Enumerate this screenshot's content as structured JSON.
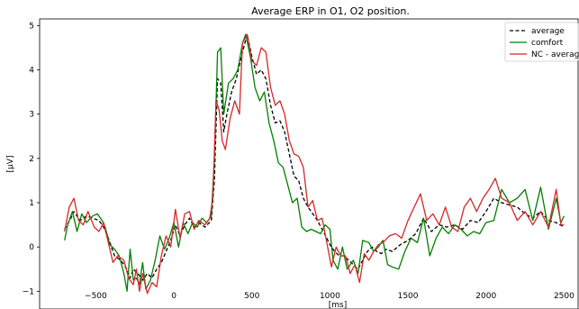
{
  "chart_data": {
    "type": "line",
    "title": "Average ERP in O1, O2 position.",
    "xlabel": "[ms]",
    "ylabel": "[µV]",
    "xlim": [
      -860,
      2590
    ],
    "ylim": [
      -1.4,
      5.15
    ],
    "xticks": [
      -500,
      0,
      500,
      1000,
      1500,
      2000,
      2500
    ],
    "xtick_labels": [
      "−500",
      "0",
      "500",
      "1000",
      "1500",
      "2000",
      "2500"
    ],
    "yticks": [
      -1,
      0,
      1,
      2,
      3,
      4,
      5
    ],
    "ytick_labels": [
      "−1",
      "0",
      "1",
      "2",
      "3",
      "4",
      "5"
    ],
    "grid": false,
    "legend": {
      "placement": "top-right"
    },
    "series": [
      {
        "name": "average",
        "color": "#000000",
        "style": "dashed",
        "points": [
          [
            -700,
            0.4
          ],
          [
            -660,
            0.65
          ],
          [
            -640,
            0.8
          ],
          [
            -600,
            0.6
          ],
          [
            -560,
            0.7
          ],
          [
            -520,
            0.65
          ],
          [
            -480,
            0.6
          ],
          [
            -450,
            0.45
          ],
          [
            -420,
            0.2
          ],
          [
            -380,
            -0.2
          ],
          [
            -340,
            -0.3
          ],
          [
            -300,
            -0.5
          ],
          [
            -280,
            -0.7
          ],
          [
            -260,
            -0.5
          ],
          [
            -230,
            -0.6
          ],
          [
            -200,
            -0.75
          ],
          [
            -170,
            -0.6
          ],
          [
            -140,
            -0.7
          ],
          [
            -110,
            -0.5
          ],
          [
            -80,
            -0.35
          ],
          [
            -50,
            -0.1
          ],
          [
            -20,
            0.15
          ],
          [
            10,
            0.5
          ],
          [
            40,
            0.25
          ],
          [
            70,
            0.5
          ],
          [
            100,
            0.65
          ],
          [
            130,
            0.45
          ],
          [
            160,
            0.55
          ],
          [
            200,
            0.45
          ],
          [
            240,
            0.6
          ],
          [
            260,
            1.5
          ],
          [
            280,
            3.8
          ],
          [
            300,
            3.7
          ],
          [
            320,
            2.6
          ],
          [
            340,
            3.0
          ],
          [
            370,
            3.5
          ],
          [
            400,
            3.8
          ],
          [
            440,
            4.4
          ],
          [
            470,
            4.8
          ],
          [
            500,
            4.3
          ],
          [
            530,
            3.9
          ],
          [
            560,
            4.0
          ],
          [
            590,
            3.8
          ],
          [
            620,
            3.2
          ],
          [
            650,
            2.8
          ],
          [
            680,
            2.85
          ],
          [
            710,
            2.6
          ],
          [
            740,
            2.1
          ],
          [
            770,
            1.6
          ],
          [
            800,
            1.5
          ],
          [
            830,
            1.1
          ],
          [
            860,
            0.9
          ],
          [
            890,
            0.75
          ],
          [
            920,
            0.6
          ],
          [
            950,
            0.4
          ],
          [
            980,
            0.2
          ],
          [
            1000,
            0.05
          ],
          [
            1030,
            -0.1
          ],
          [
            1060,
            -0.2
          ],
          [
            1090,
            -0.2
          ],
          [
            1120,
            -0.3
          ],
          [
            1150,
            -0.4
          ],
          [
            1180,
            -0.5
          ],
          [
            1210,
            -0.3
          ],
          [
            1240,
            -0.1
          ],
          [
            1270,
            0.0
          ],
          [
            1300,
            -0.1
          ],
          [
            1330,
            -0.15
          ],
          [
            1360,
            -0.05
          ],
          [
            1400,
            -0.1
          ],
          [
            1450,
            0.05
          ],
          [
            1500,
            0.15
          ],
          [
            1550,
            0.3
          ],
          [
            1600,
            0.65
          ],
          [
            1650,
            0.35
          ],
          [
            1700,
            0.5
          ],
          [
            1750,
            0.45
          ],
          [
            1800,
            0.5
          ],
          [
            1850,
            0.4
          ],
          [
            1900,
            0.6
          ],
          [
            1950,
            0.55
          ],
          [
            2000,
            0.8
          ],
          [
            2050,
            1.1
          ],
          [
            2100,
            1.0
          ],
          [
            2150,
            0.95
          ],
          [
            2200,
            0.9
          ],
          [
            2250,
            0.75
          ],
          [
            2300,
            0.65
          ],
          [
            2350,
            0.8
          ],
          [
            2400,
            0.6
          ],
          [
            2450,
            0.55
          ],
          [
            2500,
            0.45
          ]
        ]
      },
      {
        "name": "comfort",
        "color": "#008000",
        "style": "solid",
        "points": [
          [
            -700,
            0.15
          ],
          [
            -680,
            0.5
          ],
          [
            -650,
            0.8
          ],
          [
            -620,
            0.35
          ],
          [
            -590,
            0.75
          ],
          [
            -560,
            0.55
          ],
          [
            -520,
            0.7
          ],
          [
            -490,
            0.75
          ],
          [
            -460,
            0.6
          ],
          [
            -440,
            0.45
          ],
          [
            -410,
            0.05
          ],
          [
            -380,
            -0.05
          ],
          [
            -350,
            -0.2
          ],
          [
            -320,
            -0.6
          ],
          [
            -300,
            -1.0
          ],
          [
            -280,
            -0.05
          ],
          [
            -260,
            -0.75
          ],
          [
            -240,
            -0.7
          ],
          [
            -220,
            -0.85
          ],
          [
            -200,
            -0.35
          ],
          [
            -180,
            -0.95
          ],
          [
            -150,
            -0.75
          ],
          [
            -120,
            -0.3
          ],
          [
            -90,
            0.25
          ],
          [
            -60,
            -0.05
          ],
          [
            -30,
            0.2
          ],
          [
            0,
            0.55
          ],
          [
            30,
            0.0
          ],
          [
            60,
            0.55
          ],
          [
            90,
            0.3
          ],
          [
            120,
            0.55
          ],
          [
            150,
            0.45
          ],
          [
            180,
            0.65
          ],
          [
            210,
            0.55
          ],
          [
            240,
            0.7
          ],
          [
            260,
            2.0
          ],
          [
            280,
            4.4
          ],
          [
            300,
            4.5
          ],
          [
            320,
            3.0
          ],
          [
            350,
            3.7
          ],
          [
            380,
            3.8
          ],
          [
            410,
            4.0
          ],
          [
            440,
            4.6
          ],
          [
            460,
            4.8
          ],
          [
            490,
            4.3
          ],
          [
            520,
            3.6
          ],
          [
            550,
            3.3
          ],
          [
            580,
            3.5
          ],
          [
            610,
            2.8
          ],
          [
            640,
            2.4
          ],
          [
            670,
            1.9
          ],
          [
            700,
            1.8
          ],
          [
            730,
            1.4
          ],
          [
            760,
            1.0
          ],
          [
            790,
            1.1
          ],
          [
            820,
            0.45
          ],
          [
            850,
            0.35
          ],
          [
            880,
            0.4
          ],
          [
            910,
            0.35
          ],
          [
            940,
            0.3
          ],
          [
            970,
            0.5
          ],
          [
            1000,
            0.4
          ],
          [
            1020,
            -0.3
          ],
          [
            1050,
            -0.5
          ],
          [
            1080,
            0.0
          ],
          [
            1110,
            -0.5
          ],
          [
            1150,
            -0.3
          ],
          [
            1180,
            -0.6
          ],
          [
            1210,
            0.15
          ],
          [
            1250,
            0.1
          ],
          [
            1280,
            -0.1
          ],
          [
            1310,
            0.0
          ],
          [
            1340,
            0.15
          ],
          [
            1370,
            -0.4
          ],
          [
            1400,
            -0.45
          ],
          [
            1440,
            -0.5
          ],
          [
            1480,
            -0.1
          ],
          [
            1520,
            0.2
          ],
          [
            1560,
            0.1
          ],
          [
            1600,
            0.65
          ],
          [
            1640,
            -0.2
          ],
          [
            1680,
            0.2
          ],
          [
            1720,
            0.45
          ],
          [
            1760,
            0.3
          ],
          [
            1800,
            0.5
          ],
          [
            1840,
            0.4
          ],
          [
            1880,
            0.25
          ],
          [
            1920,
            0.35
          ],
          [
            1960,
            0.3
          ],
          [
            2000,
            0.55
          ],
          [
            2050,
            0.6
          ],
          [
            2100,
            1.3
          ],
          [
            2150,
            1.0
          ],
          [
            2200,
            1.1
          ],
          [
            2250,
            1.3
          ],
          [
            2300,
            0.6
          ],
          [
            2350,
            1.35
          ],
          [
            2400,
            0.4
          ],
          [
            2450,
            1.1
          ],
          [
            2480,
            0.55
          ],
          [
            2500,
            0.7
          ]
        ]
      },
      {
        "name": "NC - average",
        "color": "#d62728",
        "style": "solid",
        "points": [
          [
            -700,
            0.35
          ],
          [
            -670,
            0.9
          ],
          [
            -640,
            1.1
          ],
          [
            -610,
            0.6
          ],
          [
            -580,
            0.5
          ],
          [
            -550,
            0.8
          ],
          [
            -510,
            0.45
          ],
          [
            -480,
            0.35
          ],
          [
            -450,
            0.55
          ],
          [
            -420,
            0.1
          ],
          [
            -390,
            -0.35
          ],
          [
            -360,
            -0.2
          ],
          [
            -320,
            -0.3
          ],
          [
            -290,
            -0.7
          ],
          [
            -260,
            -0.85
          ],
          [
            -240,
            -0.5
          ],
          [
            -220,
            -1.0
          ],
          [
            -200,
            -0.6
          ],
          [
            -170,
            -1.05
          ],
          [
            -140,
            -0.8
          ],
          [
            -110,
            -0.9
          ],
          [
            -80,
            -0.2
          ],
          [
            -50,
            0.25
          ],
          [
            -20,
            0.0
          ],
          [
            10,
            0.85
          ],
          [
            40,
            0.2
          ],
          [
            70,
            0.75
          ],
          [
            100,
            0.8
          ],
          [
            130,
            0.4
          ],
          [
            160,
            0.6
          ],
          [
            200,
            0.5
          ],
          [
            230,
            0.65
          ],
          [
            250,
            1.1
          ],
          [
            270,
            3.3
          ],
          [
            290,
            3.1
          ],
          [
            310,
            2.4
          ],
          [
            330,
            2.2
          ],
          [
            360,
            2.9
          ],
          [
            390,
            3.3
          ],
          [
            420,
            3.0
          ],
          [
            440,
            4.6
          ],
          [
            470,
            4.8
          ],
          [
            500,
            4.2
          ],
          [
            530,
            4.1
          ],
          [
            560,
            4.5
          ],
          [
            590,
            4.4
          ],
          [
            620,
            3.6
          ],
          [
            650,
            3.2
          ],
          [
            680,
            3.3
          ],
          [
            710,
            3.0
          ],
          [
            740,
            2.4
          ],
          [
            770,
            2.1
          ],
          [
            800,
            2.05
          ],
          [
            830,
            1.8
          ],
          [
            860,
            0.9
          ],
          [
            890,
            1.05
          ],
          [
            920,
            0.6
          ],
          [
            950,
            0.65
          ],
          [
            980,
            0.1
          ],
          [
            1010,
            -0.45
          ],
          [
            1040,
            0.0
          ],
          [
            1070,
            -0.2
          ],
          [
            1100,
            -0.2
          ],
          [
            1130,
            -0.6
          ],
          [
            1160,
            -0.4
          ],
          [
            1190,
            -0.8
          ],
          [
            1220,
            -0.15
          ],
          [
            1250,
            -0.3
          ],
          [
            1280,
            -0.1
          ],
          [
            1310,
            0.05
          ],
          [
            1340,
            0.1
          ],
          [
            1380,
            0.25
          ],
          [
            1420,
            0.3
          ],
          [
            1460,
            0.2
          ],
          [
            1500,
            0.6
          ],
          [
            1540,
            0.9
          ],
          [
            1580,
            1.2
          ],
          [
            1620,
            0.6
          ],
          [
            1660,
            0.75
          ],
          [
            1700,
            0.5
          ],
          [
            1740,
            0.9
          ],
          [
            1780,
            0.45
          ],
          [
            1820,
            0.35
          ],
          [
            1860,
            0.9
          ],
          [
            1900,
            1.1
          ],
          [
            1940,
            0.8
          ],
          [
            1980,
            1.1
          ],
          [
            2020,
            1.3
          ],
          [
            2060,
            1.55
          ],
          [
            2100,
            1.1
          ],
          [
            2150,
            1.0
          ],
          [
            2200,
            0.6
          ],
          [
            2250,
            0.8
          ],
          [
            2300,
            0.5
          ],
          [
            2350,
            0.8
          ],
          [
            2400,
            0.45
          ],
          [
            2450,
            1.3
          ],
          [
            2480,
            0.5
          ],
          [
            2500,
            0.5
          ]
        ]
      }
    ]
  }
}
